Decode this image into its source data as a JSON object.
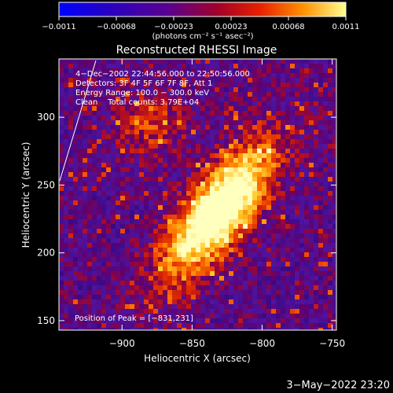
{
  "chart_data": {
    "type": "heatmap",
    "title": "Reconstructed RHESSI Image",
    "xlabel": "Heliocentric X (arcsec)",
    "ylabel": "Heliocentric Y (arcsec)",
    "xlim": [
      -945,
      -747
    ],
    "ylim": [
      143,
      343
    ],
    "x_ticks": [
      -900,
      -850,
      -800,
      -750
    ],
    "x_tick_labels": [
      "−900",
      "−850",
      "−800",
      "−750"
    ],
    "y_ticks": [
      150,
      200,
      250,
      300
    ],
    "y_tick_labels": [
      "150",
      "200",
      "250",
      "300"
    ],
    "colorbar": {
      "range": [
        -0.0011,
        0.0011
      ],
      "tick_labels": [
        "−0.0011",
        "−0.00068",
        "−0.00023",
        "0.00023",
        "0.00068",
        "0.0011"
      ],
      "units_label": "(photons cm⁻² s⁻¹ asec⁻²)"
    },
    "annotations": [
      "4−Dec−2002 22:44:56.000 to 22:50:56.000",
      "Detectors: 3F 4F 5F 6F 7F 8F, Att 1",
      "Energy Range: 100.0 − 300.0 keV",
      "Clean    Total counts: 3.79E+04"
    ],
    "peak": {
      "label": "Position of Peak = [−831,231]",
      "x": -831,
      "y": 231
    },
    "grid": false,
    "colormap": "black-purple-red-yellow-white"
  },
  "footer_timestamp": "3−May−2022 23:20",
  "colors": {
    "background": "#000000",
    "text": "#ffffff"
  }
}
